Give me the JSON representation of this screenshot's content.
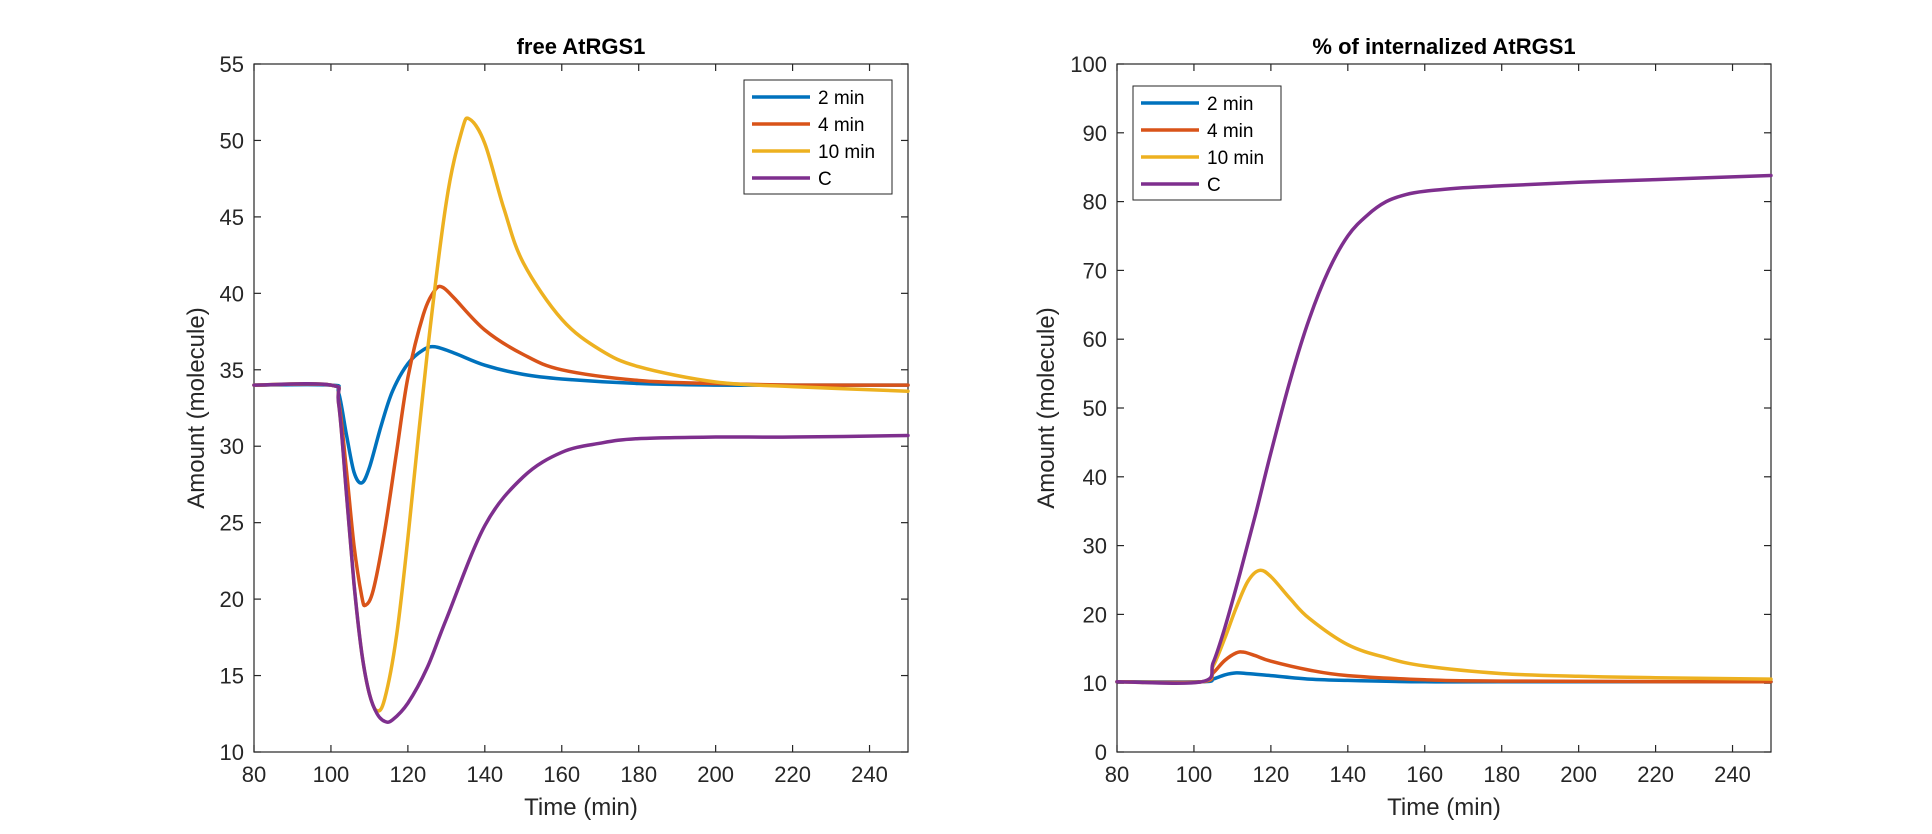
{
  "chart_data": [
    {
      "type": "line",
      "title": "free AtRGS1",
      "xlabel": "Time (min)",
      "ylabel": "Amount (molecule)",
      "xlim": [
        80,
        250
      ],
      "ylim": [
        10,
        55
      ],
      "xticks": [
        80,
        100,
        120,
        140,
        160,
        180,
        200,
        220,
        240
      ],
      "yticks": [
        10,
        15,
        20,
        25,
        30,
        35,
        40,
        45,
        50,
        55
      ],
      "grid": false,
      "legend_position": "top-right",
      "series": [
        {
          "name": "2 min",
          "color": "#0072BD",
          "x": [
            80,
            100,
            102,
            104,
            106,
            108,
            110,
            113,
            116,
            120,
            124,
            127,
            132,
            140,
            150,
            160,
            180,
            200,
            220,
            250
          ],
          "y": [
            34,
            34,
            33.5,
            30.8,
            28.3,
            27.6,
            28.6,
            31.3,
            33.6,
            35.4,
            36.3,
            36.5,
            36.1,
            35.3,
            34.7,
            34.4,
            34.1,
            34.0,
            34.0,
            34.0
          ]
        },
        {
          "name": "4 min",
          "color": "#D95319",
          "x": [
            80,
            100,
            102,
            104,
            106,
            108,
            109,
            111,
            114,
            117,
            120,
            124,
            127,
            129,
            132,
            140,
            150,
            160,
            180,
            200,
            220,
            250
          ],
          "y": [
            34,
            34,
            33.0,
            28.5,
            23.5,
            20.2,
            19.6,
            20.6,
            24.5,
            29.5,
            34.5,
            38.6,
            40.2,
            40.4,
            39.7,
            37.6,
            36.0,
            35.0,
            34.3,
            34.1,
            34.0,
            34.0
          ]
        },
        {
          "name": "10 min",
          "color": "#EDB120",
          "x": [
            80,
            100,
            102,
            104,
            106,
            108,
            110,
            112,
            114,
            117,
            120,
            125,
            130,
            134,
            136,
            140,
            145,
            150,
            160,
            170,
            180,
            200,
            220,
            250
          ],
          "y": [
            34,
            34,
            32.8,
            27.0,
            21.0,
            16.5,
            13.8,
            12.7,
            13.5,
            17.5,
            24.0,
            36.0,
            46.0,
            50.6,
            51.4,
            49.8,
            45.5,
            42.0,
            38.3,
            36.3,
            35.2,
            34.2,
            33.9,
            33.6
          ]
        },
        {
          "name": "C",
          "color": "#7E2F8E",
          "x": [
            80,
            100,
            102,
            104,
            106,
            108,
            110,
            112,
            114,
            116,
            120,
            125,
            130,
            140,
            150,
            160,
            170,
            180,
            200,
            220,
            250
          ],
          "y": [
            34,
            34,
            32.8,
            27.0,
            21.0,
            16.5,
            13.8,
            12.5,
            12.0,
            12.1,
            13.2,
            15.5,
            18.7,
            24.8,
            28.0,
            29.6,
            30.2,
            30.5,
            30.6,
            30.6,
            30.7
          ]
        }
      ]
    },
    {
      "type": "line",
      "title": "% of internalized AtRGS1",
      "xlabel": "Time (min)",
      "ylabel": "Amount (molecule)",
      "xlim": [
        80,
        250
      ],
      "ylim": [
        0,
        100
      ],
      "xticks": [
        80,
        100,
        120,
        140,
        160,
        180,
        200,
        220,
        240
      ],
      "yticks": [
        0,
        10,
        20,
        30,
        40,
        50,
        60,
        70,
        80,
        90,
        100
      ],
      "grid": false,
      "legend_position": "top-left",
      "series": [
        {
          "name": "2 min",
          "color": "#0072BD",
          "x": [
            80,
            102,
            105,
            108,
            111,
            114,
            120,
            130,
            140,
            160,
            180,
            250
          ],
          "y": [
            10.2,
            10.2,
            10.6,
            11.2,
            11.5,
            11.4,
            11.1,
            10.6,
            10.4,
            10.2,
            10.2,
            10.2
          ]
        },
        {
          "name": "4 min",
          "color": "#D95319",
          "x": [
            80,
            102,
            105,
            108,
            111,
            113,
            116,
            120,
            130,
            140,
            160,
            180,
            250
          ],
          "y": [
            10.2,
            10.2,
            11.5,
            13.3,
            14.4,
            14.5,
            14.0,
            13.2,
            11.9,
            11.1,
            10.5,
            10.3,
            10.2
          ]
        },
        {
          "name": "10 min",
          "color": "#EDB120",
          "x": [
            80,
            102,
            105,
            108,
            111,
            114,
            117,
            120,
            125,
            130,
            140,
            150,
            160,
            180,
            200,
            220,
            250
          ],
          "y": [
            10.2,
            10.2,
            12.5,
            16.5,
            21.0,
            24.8,
            26.4,
            25.5,
            22.3,
            19.4,
            15.6,
            13.7,
            12.5,
            11.4,
            11.0,
            10.8,
            10.6
          ]
        },
        {
          "name": "C",
          "color": "#7E2F8E",
          "x": [
            80,
            102,
            105,
            108,
            112,
            116,
            120,
            125,
            130,
            135,
            140,
            145,
            150,
            155,
            160,
            170,
            180,
            200,
            220,
            250
          ],
          "y": [
            10.2,
            10.2,
            13.0,
            18.0,
            26.0,
            34.5,
            43.5,
            54.0,
            63.0,
            70.0,
            75.0,
            78.0,
            80.0,
            81.0,
            81.5,
            82.0,
            82.3,
            82.8,
            83.2,
            83.8
          ]
        }
      ]
    }
  ]
}
